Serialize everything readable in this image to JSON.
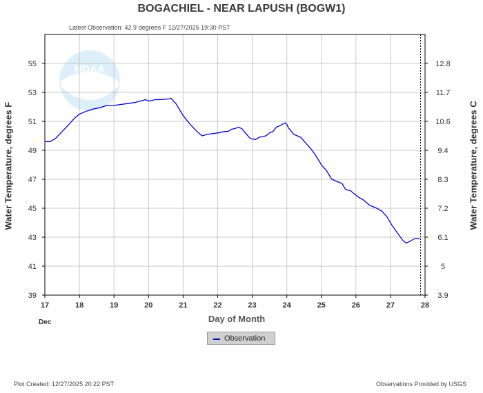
{
  "chart_data": {
    "type": "line",
    "title": "BOGACHIEL - NEAR LAPUSH  (BOGW1)",
    "subtitle": "Latest Observation: 42.9 degrees F  12/27/2025 19:30 PST",
    "xlabel": "Day of Month",
    "x_month_label": "Dec",
    "ylabel": "Water Temperature, degrees F",
    "ylabel_right": "Water Temperature, degrees C",
    "xlim": [
      17,
      28
    ],
    "ylim": [
      39,
      57
    ],
    "x_ticks": [
      "17",
      "18",
      "19",
      "20",
      "21",
      "22",
      "23",
      "24",
      "25",
      "26",
      "27",
      "28"
    ],
    "y_ticks": [
      "39",
      "41",
      "43",
      "45",
      "47",
      "49",
      "51",
      "53",
      "55"
    ],
    "y_ticks_right": [
      "3.9",
      "5",
      "6.1",
      "7.2",
      "8.3",
      "9.4",
      "10.6",
      "11.7",
      "12.8"
    ],
    "grid": true,
    "legend_position": "bottom-center",
    "series": [
      {
        "name": "Observation",
        "color": "#0000cc",
        "x": [
          17.0,
          17.15,
          17.3,
          17.5,
          17.7,
          17.85,
          18.0,
          18.2,
          18.4,
          18.6,
          18.8,
          19.0,
          19.3,
          19.6,
          19.85,
          19.9,
          20.0,
          20.2,
          20.3,
          20.6,
          20.65,
          20.8,
          21.0,
          21.2,
          21.4,
          21.55,
          21.7,
          22.0,
          22.2,
          22.3,
          22.4,
          22.5,
          22.6,
          22.7,
          22.8,
          22.95,
          23.1,
          23.2,
          23.4,
          23.5,
          23.6,
          23.7,
          23.8,
          23.95,
          24.0,
          24.05,
          24.2,
          24.4,
          24.55,
          24.7,
          24.85,
          25.0,
          25.15,
          25.3,
          25.4,
          25.6,
          25.7,
          25.85,
          26.0,
          26.05,
          26.2,
          26.4,
          26.6,
          26.75,
          26.9,
          27.05,
          27.2,
          27.35,
          27.45,
          27.55,
          27.7,
          27.8,
          27.85
        ],
        "y": [
          49.6,
          49.6,
          49.8,
          50.3,
          50.8,
          51.2,
          51.5,
          51.7,
          51.85,
          51.95,
          52.1,
          52.1,
          52.2,
          52.3,
          52.45,
          52.5,
          52.4,
          52.5,
          52.5,
          52.55,
          52.6,
          52.2,
          51.4,
          50.8,
          50.3,
          50.0,
          50.1,
          50.2,
          50.3,
          50.3,
          50.45,
          50.5,
          50.6,
          50.5,
          50.2,
          49.8,
          49.75,
          49.9,
          50.0,
          50.2,
          50.3,
          50.6,
          50.7,
          50.9,
          50.8,
          50.55,
          50.1,
          49.9,
          49.5,
          49.1,
          48.6,
          48.0,
          47.6,
          47.0,
          46.9,
          46.7,
          46.3,
          46.2,
          45.9,
          45.8,
          45.6,
          45.2,
          45.0,
          44.8,
          44.4,
          43.8,
          43.3,
          42.8,
          42.6,
          42.7,
          42.9,
          42.9,
          42.9
        ]
      }
    ]
  },
  "legend": {
    "observation_label": "Observation"
  },
  "footer": {
    "plot_created": "Plot Created:  12/27/2025 20:22 PST",
    "provider": "Observations Provided by USGS"
  },
  "logo": {
    "text": "NOAA"
  },
  "colors": {
    "series": "#0000cc",
    "grid": "#bbbbbb",
    "axis": "#000000"
  }
}
